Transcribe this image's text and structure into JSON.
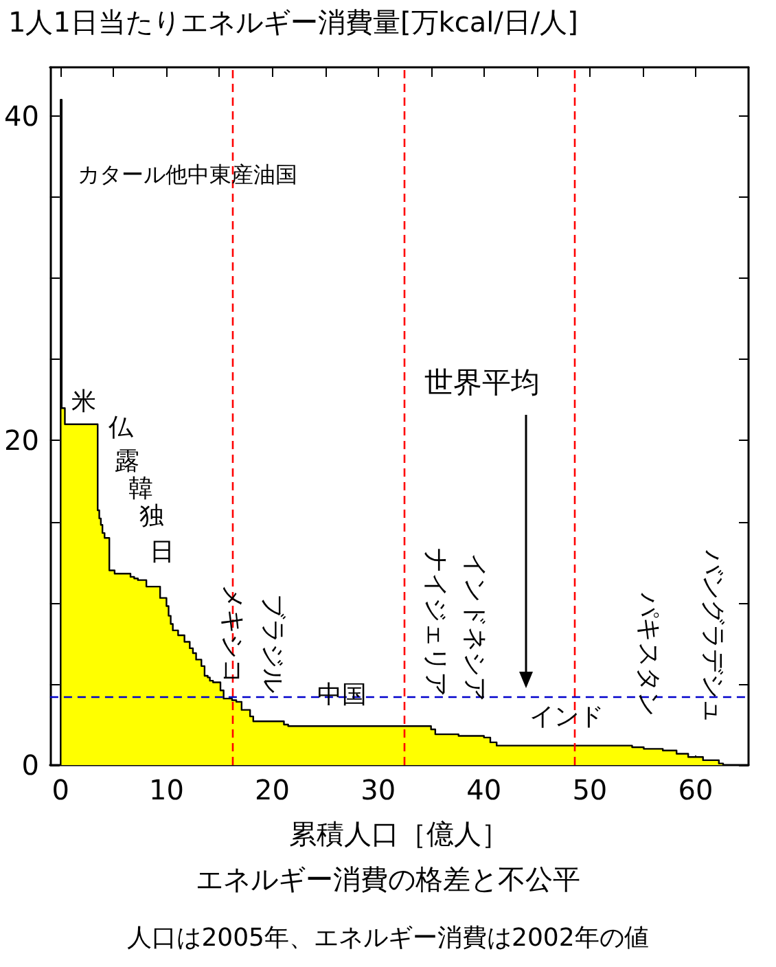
{
  "chart_data": {
    "type": "area",
    "title": "エネルギー消費の格差と不公平",
    "xlabel": "累積人口［億人］",
    "ylabel": "1人1日当たりエネルギー消費量[万kcal/日/人]",
    "annotations": [
      "人口は2005年、エネルギー消費は2002年の値",
      "カタール他中東産油国",
      "米",
      "仏",
      "露",
      "韓",
      "独",
      "日",
      "メキシコ",
      "ブラジル",
      "中国",
      "ナイジェリア",
      "インドネシア",
      "世界平均",
      "インド",
      "パキスタン",
      "バングラデシュ"
    ],
    "series": [
      {
        "color": "#ffff00",
        "x": [
          0,
          0,
          0.1,
          0.1,
          0.4,
          0.4,
          3.5,
          3.5,
          3.65,
          3.65,
          3.8,
          3.8,
          3.95,
          3.95,
          4.15,
          4.15,
          4.6,
          4.6,
          5.1,
          5.1,
          6.6,
          6.6,
          6.95,
          6.95,
          7.3,
          7.3,
          8.1,
          8.1,
          9.4,
          9.4,
          10.0,
          10.0,
          10.2,
          10.2,
          10.4,
          10.4,
          10.6,
          10.6,
          11.1,
          11.1,
          11.7,
          11.7,
          12.2,
          12.2,
          12.5,
          12.5,
          12.8,
          12.8,
          13.3,
          13.3,
          13.6,
          13.6,
          13.9,
          13.9,
          14.1,
          14.1,
          14.4,
          14.4,
          15.1,
          15.1,
          15.4,
          15.4,
          16.2,
          16.2,
          16.6,
          16.6,
          17.1,
          17.1,
          17.9,
          17.9,
          18.2,
          18.2,
          21.1,
          21.1,
          21.5,
          21.5,
          35.0,
          35.0,
          35.4,
          35.4,
          37.6,
          37.6,
          40.0,
          40.0,
          40.6,
          40.6,
          41.2,
          41.2,
          54.0,
          54.0,
          55.1,
          55.1,
          56.9,
          56.9,
          58.2,
          58.2,
          59.3,
          59.3,
          60.7,
          60.7,
          62.2,
          62.2,
          62.6,
          62.6
        ],
        "values": [
          0,
          41,
          41,
          22,
          22,
          21.0,
          21.0,
          15.7,
          15.7,
          15.2,
          15.2,
          14.8,
          14.8,
          14.3,
          14.3,
          14.0,
          14.0,
          12.0,
          12.0,
          11.8,
          11.8,
          11.6,
          11.6,
          11.5,
          11.5,
          11.4,
          11.4,
          11.0,
          11.0,
          10.3,
          10.3,
          9.8,
          9.8,
          9.2,
          9.2,
          8.7,
          8.7,
          8.3,
          8.3,
          8.0,
          8.0,
          7.6,
          7.6,
          7.2,
          7.2,
          6.9,
          6.9,
          6.5,
          6.5,
          6.1,
          6.1,
          5.5,
          5.5,
          5.4,
          5.4,
          5.2,
          5.2,
          5.1,
          5.1,
          4.6,
          4.6,
          4.1,
          4.1,
          4.0,
          4.0,
          3.9,
          3.9,
          3.4,
          3.4,
          3.0,
          3.0,
          2.7,
          2.7,
          2.5,
          2.5,
          2.4,
          2.4,
          2.2,
          2.2,
          1.9,
          1.9,
          1.8,
          1.8,
          1.7,
          1.7,
          1.4,
          1.4,
          1.2,
          1.2,
          1.1,
          1.1,
          1.0,
          1.0,
          0.9,
          0.9,
          0.7,
          0.7,
          0.5,
          0.5,
          0.3,
          0.3,
          0.1,
          0.1,
          0
        ]
      }
    ],
    "xlim": [
      -1,
      65
    ],
    "ylim": [
      0,
      43
    ],
    "xticks": [
      0,
      {
        "value": 5,
        "label": null
      },
      10,
      {
        "value": 15,
        "label": null
      },
      20,
      {
        "value": 25,
        "label": null
      },
      30,
      {
        "value": 35,
        "label": null
      },
      40,
      {
        "value": 45,
        "label": null
      },
      50,
      {
        "value": 55,
        "label": null
      },
      60
    ],
    "yticks": [
      0,
      {
        "value": 5,
        "label": null
      },
      {
        "value": 10,
        "label": null
      },
      {
        "value": 15,
        "label": null
      },
      20,
      {
        "value": 25,
        "label": null
      },
      {
        "value": 30,
        "label": null
      },
      {
        "value": 35,
        "label": null
      },
      40
    ],
    "ref_lines": [
      {
        "axis": "x",
        "value": 16.2,
        "color": "#ff0000",
        "line_style": "dashed"
      },
      {
        "axis": "x",
        "value": 32.4,
        "color": "#ff0000",
        "line_style": "dashed"
      },
      {
        "axis": "x",
        "value": 48.6,
        "color": "#ff0000",
        "line_style": "dashed"
      },
      {
        "axis": "y",
        "value": 4.2,
        "color": "#0000cc",
        "line_style": "dashed"
      }
    ],
    "grid": false,
    "marker": "none"
  }
}
